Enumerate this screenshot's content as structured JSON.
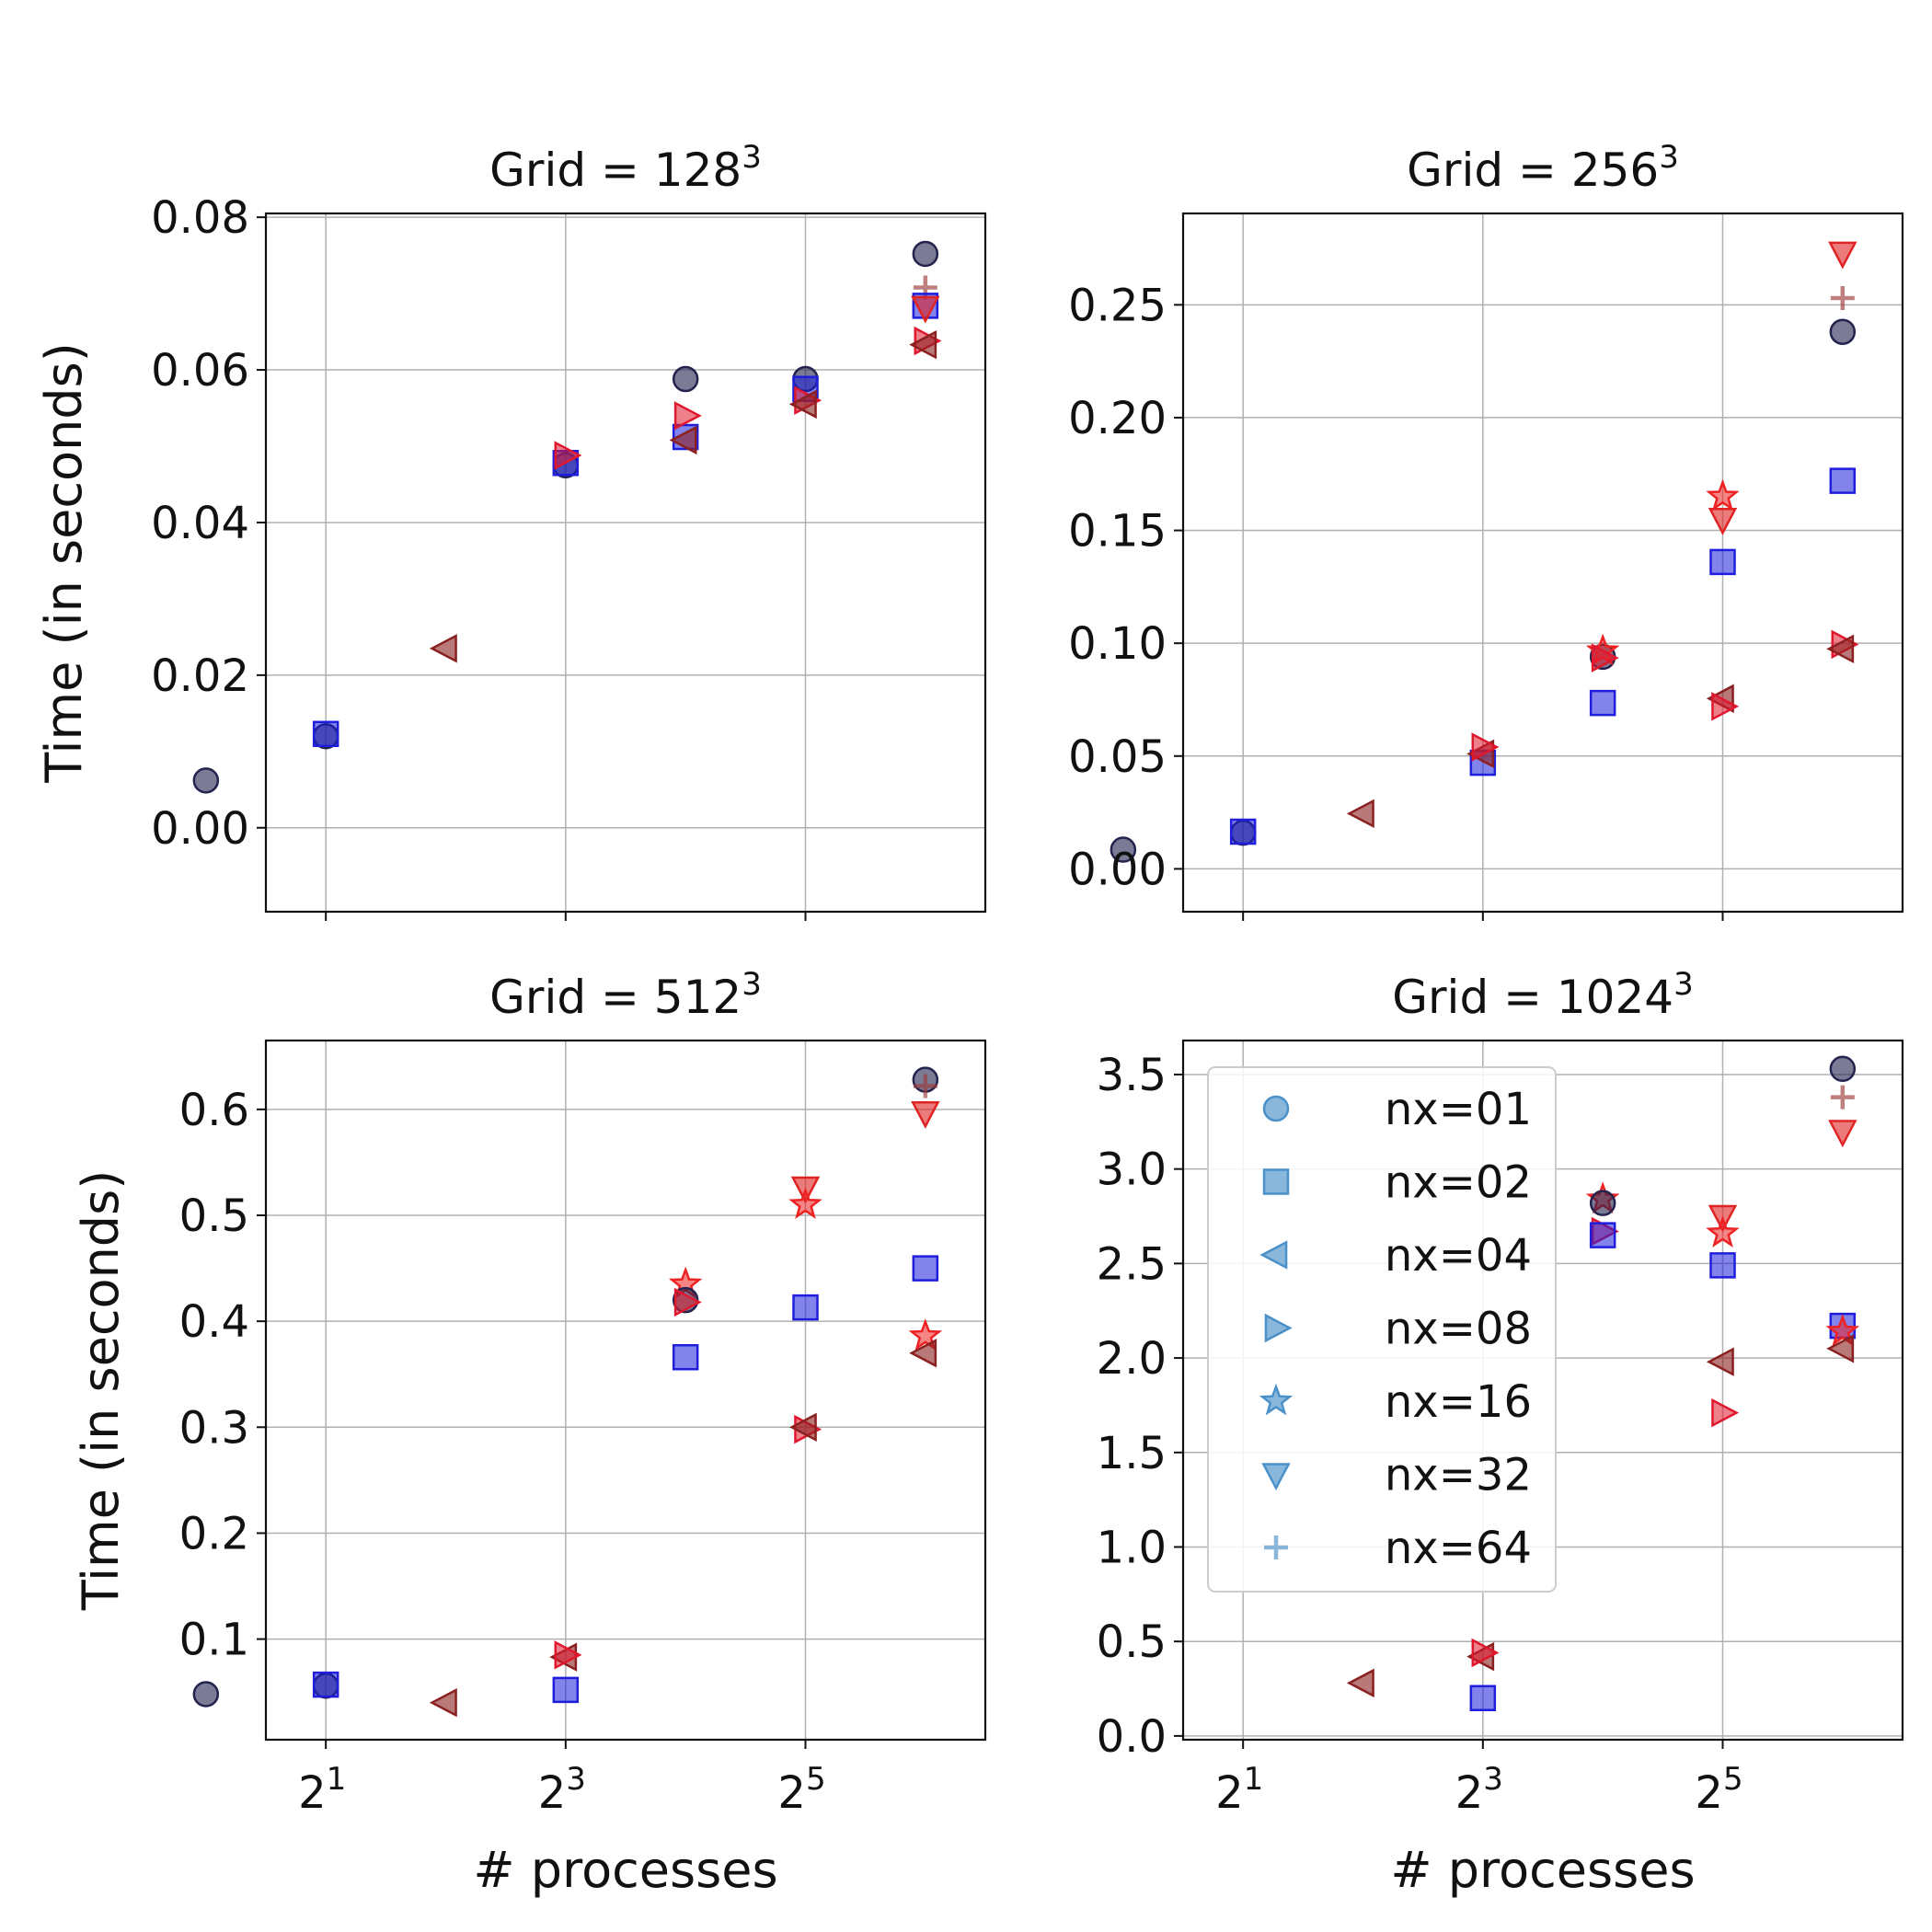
{
  "chart_data": {
    "type": "scatter",
    "xlabel": "# processes",
    "ylabel": "Time (in seconds)",
    "x_scale": "log2",
    "x_ticks": [
      {
        "base": "2",
        "exp": "1",
        "value": 2
      },
      {
        "base": "2",
        "exp": "3",
        "value": 8
      },
      {
        "base": "2",
        "exp": "5",
        "value": 32
      }
    ],
    "legend": {
      "location": "upper-left of Grid = 1024^3 panel",
      "entries": [
        "nx=01",
        "nx=02",
        "nx=04",
        "nx=08",
        "nx=16",
        "nx=32",
        "nx=64"
      ],
      "color": "#4a90c9"
    },
    "series_styles": [
      {
        "name": "nx=01",
        "marker": "circle",
        "color": "#23234e",
        "opacity": 0.6
      },
      {
        "name": "nx=02",
        "marker": "square",
        "color": "#1e1edc",
        "opacity": 0.55
      },
      {
        "name": "nx=04",
        "marker": "triangle-left",
        "color": "#8b2020",
        "opacity": 0.6
      },
      {
        "name": "nx=08",
        "marker": "triangle-right",
        "color": "#e0182e",
        "opacity": 0.55
      },
      {
        "name": "nx=16",
        "marker": "star",
        "color": "#ee2222",
        "opacity": 0.55
      },
      {
        "name": "nx=32",
        "marker": "triangle-down",
        "color": "#e02424",
        "opacity": 0.6
      },
      {
        "name": "nx=64",
        "marker": "plus",
        "color": "#9b3a3a",
        "opacity": 0.65
      }
    ],
    "panels": [
      {
        "title_base": "Grid = 128",
        "title_exp": "3",
        "ylim": [
          -0.011,
          0.0805
        ],
        "yticks": [
          "0.00",
          "0.02",
          "0.04",
          "0.06",
          "0.08"
        ],
        "ytick_values": [
          0,
          0.02,
          0.04,
          0.06,
          0.08
        ],
        "points": [
          {
            "nx": "nx=01",
            "p": 1,
            "t": 0.0062
          },
          {
            "nx": "nx=01",
            "p": 2,
            "t": 0.012
          },
          {
            "nx": "nx=02",
            "p": 2,
            "t": 0.0123
          },
          {
            "nx": "nx=04",
            "p": 4,
            "t": 0.0235
          },
          {
            "nx": "nx=01",
            "p": 8,
            "t": 0.0475
          },
          {
            "nx": "nx=02",
            "p": 8,
            "t": 0.0478
          },
          {
            "nx": "nx=08",
            "p": 8,
            "t": 0.0488
          },
          {
            "nx": "nx=01",
            "p": 16,
            "t": 0.0588
          },
          {
            "nx": "nx=02",
            "p": 16,
            "t": 0.0512
          },
          {
            "nx": "nx=08",
            "p": 16,
            "t": 0.054
          },
          {
            "nx": "nx=04",
            "p": 16,
            "t": 0.0508
          },
          {
            "nx": "nx=01",
            "p": 32,
            "t": 0.0588
          },
          {
            "nx": "nx=02",
            "p": 32,
            "t": 0.0575
          },
          {
            "nx": "nx=08",
            "p": 32,
            "t": 0.056
          },
          {
            "nx": "nx=04",
            "p": 32,
            "t": 0.0555
          },
          {
            "nx": "nx=01",
            "p": 64,
            "t": 0.0752
          },
          {
            "nx": "nx=64",
            "p": 64,
            "t": 0.0708
          },
          {
            "nx": "nx=02",
            "p": 64,
            "t": 0.0684
          },
          {
            "nx": "nx=32",
            "p": 64,
            "t": 0.0682
          },
          {
            "nx": "nx=08",
            "p": 64,
            "t": 0.0638
          },
          {
            "nx": "nx=04",
            "p": 64,
            "t": 0.0633
          }
        ]
      },
      {
        "title_base": "Grid = 256",
        "title_exp": "3",
        "ylim": [
          -0.019,
          0.2905
        ],
        "yticks": [
          "0.00",
          "0.05",
          "0.10",
          "0.15",
          "0.20",
          "0.25"
        ],
        "ytick_values": [
          0,
          0.05,
          0.1,
          0.15,
          0.2,
          0.25
        ],
        "points": [
          {
            "nx": "nx=01",
            "p": 1,
            "t": 0.0085
          },
          {
            "nx": "nx=01",
            "p": 2,
            "t": 0.016
          },
          {
            "nx": "nx=02",
            "p": 2,
            "t": 0.0165
          },
          {
            "nx": "nx=04",
            "p": 4,
            "t": 0.0245
          },
          {
            "nx": "nx=02",
            "p": 8,
            "t": 0.047
          },
          {
            "nx": "nx=04",
            "p": 8,
            "t": 0.051
          },
          {
            "nx": "nx=08",
            "p": 8,
            "t": 0.054
          },
          {
            "nx": "nx=01",
            "p": 16,
            "t": 0.094
          },
          {
            "nx": "nx=16",
            "p": 16,
            "t": 0.0965
          },
          {
            "nx": "nx=08",
            "p": 16,
            "t": 0.0935
          },
          {
            "nx": "nx=02",
            "p": 16,
            "t": 0.0735
          },
          {
            "nx": "nx=16",
            "p": 32,
            "t": 0.165
          },
          {
            "nx": "nx=32",
            "p": 32,
            "t": 0.155
          },
          {
            "nx": "nx=02",
            "p": 32,
            "t": 0.136
          },
          {
            "nx": "nx=04",
            "p": 32,
            "t": 0.0755
          },
          {
            "nx": "nx=08",
            "p": 32,
            "t": 0.072
          },
          {
            "nx": "nx=32",
            "p": 64,
            "t": 0.273
          },
          {
            "nx": "nx=64",
            "p": 64,
            "t": 0.253
          },
          {
            "nx": "nx=01",
            "p": 64,
            "t": 0.238
          },
          {
            "nx": "nx=02",
            "p": 64,
            "t": 0.172
          },
          {
            "nx": "nx=08",
            "p": 64,
            "t": 0.0995
          },
          {
            "nx": "nx=04",
            "p": 64,
            "t": 0.0975
          }
        ]
      },
      {
        "title_base": "Grid = 512",
        "title_exp": "3",
        "ylim": [
          0.005,
          0.665
        ],
        "yticks": [
          "0.1",
          "0.2",
          "0.3",
          "0.4",
          "0.5",
          "0.6"
        ],
        "ytick_values": [
          0.1,
          0.2,
          0.3,
          0.4,
          0.5,
          0.6
        ],
        "points": [
          {
            "nx": "nx=01",
            "p": 1,
            "t": 0.048
          },
          {
            "nx": "nx=01",
            "p": 2,
            "t": 0.056
          },
          {
            "nx": "nx=02",
            "p": 2,
            "t": 0.057
          },
          {
            "nx": "nx=04",
            "p": 4,
            "t": 0.04
          },
          {
            "nx": "nx=04",
            "p": 8,
            "t": 0.083
          },
          {
            "nx": "nx=08",
            "p": 8,
            "t": 0.085
          },
          {
            "nx": "nx=02",
            "p": 8,
            "t": 0.052
          },
          {
            "nx": "nx=16",
            "p": 16,
            "t": 0.435
          },
          {
            "nx": "nx=01",
            "p": 16,
            "t": 0.42
          },
          {
            "nx": "nx=08",
            "p": 16,
            "t": 0.418
          },
          {
            "nx": "nx=02",
            "p": 16,
            "t": 0.366
          },
          {
            "nx": "nx=32",
            "p": 32,
            "t": 0.526
          },
          {
            "nx": "nx=16",
            "p": 32,
            "t": 0.51
          },
          {
            "nx": "nx=02",
            "p": 32,
            "t": 0.413
          },
          {
            "nx": "nx=08",
            "p": 32,
            "t": 0.298
          },
          {
            "nx": "nx=04",
            "p": 32,
            "t": 0.3
          },
          {
            "nx": "nx=01",
            "p": 64,
            "t": 0.628
          },
          {
            "nx": "nx=64",
            "p": 64,
            "t": 0.622
          },
          {
            "nx": "nx=32",
            "p": 64,
            "t": 0.597
          },
          {
            "nx": "nx=02",
            "p": 64,
            "t": 0.45
          },
          {
            "nx": "nx=16",
            "p": 64,
            "t": 0.386
          },
          {
            "nx": "nx=04",
            "p": 64,
            "t": 0.37
          }
        ]
      },
      {
        "title_base": "Grid = 1024",
        "title_exp": "3",
        "ylim": [
          -0.02,
          3.68
        ],
        "yticks": [
          "0.0",
          "0.5",
          "1.0",
          "1.5",
          "2.0",
          "2.5",
          "3.0",
          "3.5"
        ],
        "ytick_values": [
          0,
          0.5,
          1,
          1.5,
          2,
          2.5,
          3,
          3.5
        ],
        "points": [
          {
            "nx": "nx=04",
            "p": 4,
            "t": 0.28
          },
          {
            "nx": "nx=04",
            "p": 8,
            "t": 0.42
          },
          {
            "nx": "nx=08",
            "p": 8,
            "t": 0.44
          },
          {
            "nx": "nx=02",
            "p": 8,
            "t": 0.2
          },
          {
            "nx": "nx=16",
            "p": 16,
            "t": 2.84
          },
          {
            "nx": "nx=01",
            "p": 16,
            "t": 2.82
          },
          {
            "nx": "nx=08",
            "p": 16,
            "t": 2.67
          },
          {
            "nx": "nx=02",
            "p": 16,
            "t": 2.65
          },
          {
            "nx": "nx=32",
            "p": 32,
            "t": 2.75
          },
          {
            "nx": "nx=16",
            "p": 32,
            "t": 2.66
          },
          {
            "nx": "nx=02",
            "p": 32,
            "t": 2.49
          },
          {
            "nx": "nx=04",
            "p": 32,
            "t": 1.98
          },
          {
            "nx": "nx=08",
            "p": 32,
            "t": 1.71
          },
          {
            "nx": "nx=01",
            "p": 64,
            "t": 3.53
          },
          {
            "nx": "nx=64",
            "p": 64,
            "t": 3.38
          },
          {
            "nx": "nx=32",
            "p": 64,
            "t": 3.2
          },
          {
            "nx": "nx=02",
            "p": 64,
            "t": 2.17
          },
          {
            "nx": "nx=16",
            "p": 64,
            "t": 2.14
          },
          {
            "nx": "nx=04",
            "p": 64,
            "t": 2.05
          }
        ]
      }
    ]
  }
}
